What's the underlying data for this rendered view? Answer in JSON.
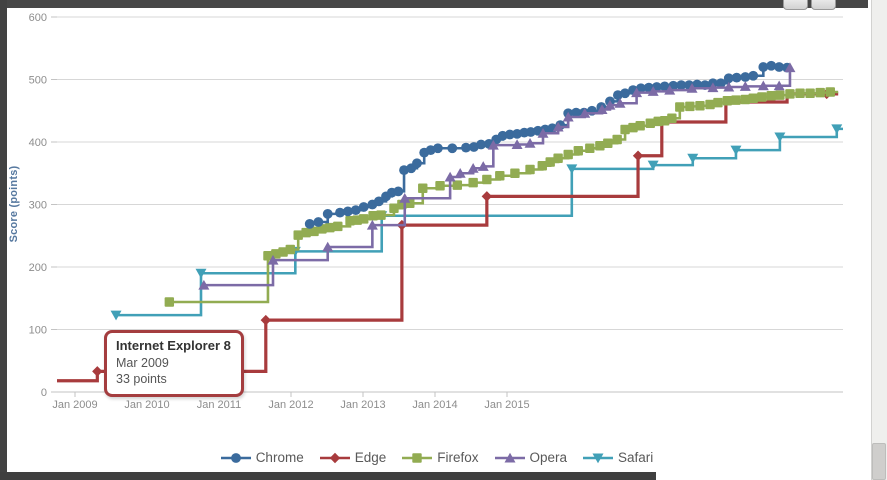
{
  "tooltip": {
    "title": "Internet Explorer 8",
    "date": "Mar 2009",
    "value": "33 points"
  },
  "chart_data": {
    "type": "line",
    "stepped": true,
    "title": "",
    "xlabel": "",
    "ylabel": "Score (points)",
    "ylim": [
      0,
      600
    ],
    "y_ticks": [
      0,
      100,
      200,
      300,
      400,
      500,
      600
    ],
    "x_tick_labels": [
      "Jan 2009",
      "Jan 2010",
      "Jan 2011",
      "Jan 2012",
      "Jan 2013",
      "Jan 2014",
      "Jan 2015"
    ],
    "x_tick_years": [
      2009,
      2010,
      2011,
      2012,
      2013,
      2014,
      2015
    ],
    "grid": "horizontal",
    "legend_position": "bottom",
    "series": [
      {
        "name": "Chrome",
        "color": "#3b6b9d",
        "marker": "circle",
        "end": 2018.93,
        "points": [
          [
            2012.26,
            269
          ],
          [
            2012.38,
            272
          ],
          [
            2012.51,
            285
          ],
          [
            2012.68,
            287
          ],
          [
            2012.79,
            289
          ],
          [
            2012.9,
            291
          ],
          [
            2013.01,
            296
          ],
          [
            2013.13,
            300
          ],
          [
            2013.22,
            305
          ],
          [
            2013.32,
            313
          ],
          [
            2013.4,
            319
          ],
          [
            2013.49,
            321
          ],
          [
            2013.57,
            355
          ],
          [
            2013.67,
            358
          ],
          [
            2013.75,
            366
          ],
          [
            2013.85,
            383
          ],
          [
            2013.94,
            387
          ],
          [
            2014.04,
            390
          ],
          [
            2014.24,
            390
          ],
          [
            2014.43,
            391
          ],
          [
            2014.54,
            392
          ],
          [
            2014.64,
            396
          ],
          [
            2014.75,
            397
          ],
          [
            2014.85,
            404
          ],
          [
            2014.94,
            410
          ],
          [
            2015.04,
            412
          ],
          [
            2015.14,
            413
          ],
          [
            2015.24,
            415
          ],
          [
            2015.33,
            416
          ],
          [
            2015.43,
            418
          ],
          [
            2015.53,
            420
          ],
          [
            2015.63,
            422
          ],
          [
            2015.74,
            427
          ],
          [
            2015.85,
            446
          ],
          [
            2015.96,
            447
          ],
          [
            2016.07,
            447
          ],
          [
            2016.18,
            450
          ],
          [
            2016.31,
            456
          ],
          [
            2016.43,
            465
          ],
          [
            2016.54,
            475
          ],
          [
            2016.64,
            478
          ],
          [
            2016.75,
            483
          ],
          [
            2016.86,
            486
          ],
          [
            2016.97,
            487
          ],
          [
            2017.08,
            488
          ],
          [
            2017.19,
            489
          ],
          [
            2017.31,
            490
          ],
          [
            2017.42,
            491
          ],
          [
            2017.53,
            491
          ],
          [
            2017.64,
            492
          ],
          [
            2017.75,
            491
          ],
          [
            2017.86,
            494
          ],
          [
            2017.97,
            494
          ],
          [
            2018.08,
            502
          ],
          [
            2018.19,
            503
          ],
          [
            2018.31,
            504
          ],
          [
            2018.42,
            506
          ],
          [
            2018.56,
            520
          ],
          [
            2018.67,
            522
          ],
          [
            2018.78,
            520
          ],
          [
            2018.89,
            519
          ]
        ]
      },
      {
        "name": "Edge",
        "color": "#a83b3d",
        "marker": "diamond",
        "end": 2019.6,
        "points": [
          [
            2008.75,
            18,
            0
          ],
          [
            2009.31,
            33,
            1
          ],
          [
            2011.65,
            115,
            1
          ],
          [
            2013.54,
            267,
            1
          ],
          [
            2014.72,
            313,
            1
          ],
          [
            2016.82,
            378,
            1
          ],
          [
            2017.15,
            432,
            0
          ],
          [
            2018.04,
            464,
            0
          ],
          [
            2018.89,
            477,
            0
          ],
          [
            2019.44,
            477,
            1
          ]
        ]
      },
      {
        "name": "Firefox",
        "color": "#92ac52",
        "marker": "square",
        "end": 2019.6,
        "points": [
          [
            2010.31,
            144
          ],
          [
            2011.68,
            218
          ],
          [
            2011.79,
            221
          ],
          [
            2011.89,
            224
          ],
          [
            2011.99,
            228
          ],
          [
            2012.1,
            251
          ],
          [
            2012.21,
            255
          ],
          [
            2012.32,
            257
          ],
          [
            2012.43,
            261
          ],
          [
            2012.54,
            263
          ],
          [
            2012.65,
            265
          ],
          [
            2012.82,
            274
          ],
          [
            2012.92,
            275
          ],
          [
            2013.01,
            277
          ],
          [
            2013.14,
            282
          ],
          [
            2013.25,
            283
          ],
          [
            2013.43,
            294
          ],
          [
            2013.54,
            300
          ],
          [
            2013.65,
            302
          ],
          [
            2013.83,
            326
          ],
          [
            2014.07,
            330
          ],
          [
            2014.31,
            331
          ],
          [
            2014.53,
            335
          ],
          [
            2014.72,
            340
          ],
          [
            2014.9,
            346
          ],
          [
            2015.11,
            350
          ],
          [
            2015.32,
            356
          ],
          [
            2015.49,
            362
          ],
          [
            2015.6,
            368
          ],
          [
            2015.71,
            374
          ],
          [
            2015.85,
            380
          ],
          [
            2015.99,
            386
          ],
          [
            2016.15,
            390
          ],
          [
            2016.29,
            394
          ],
          [
            2016.4,
            398
          ],
          [
            2016.53,
            404
          ],
          [
            2016.64,
            420
          ],
          [
            2016.75,
            423
          ],
          [
            2016.85,
            426
          ],
          [
            2016.99,
            430
          ],
          [
            2017.1,
            433
          ],
          [
            2017.19,
            434
          ],
          [
            2017.29,
            438
          ],
          [
            2017.4,
            456
          ],
          [
            2017.54,
            457
          ],
          [
            2017.68,
            458
          ],
          [
            2017.82,
            460
          ],
          [
            2017.93,
            463
          ],
          [
            2018.06,
            466
          ],
          [
            2018.18,
            467
          ],
          [
            2018.31,
            468
          ],
          [
            2018.42,
            470
          ],
          [
            2018.54,
            472
          ],
          [
            2018.67,
            474
          ],
          [
            2018.79,
            475
          ],
          [
            2018.93,
            477
          ],
          [
            2019.07,
            478
          ],
          [
            2019.21,
            478
          ],
          [
            2019.35,
            479
          ],
          [
            2019.49,
            480
          ]
        ]
      },
      {
        "name": "Opera",
        "color": "#7c6ba6",
        "marker": "triangle-up",
        "end": 2018.96,
        "points": [
          [
            2010.79,
            171
          ],
          [
            2011.75,
            211
          ],
          [
            2012.51,
            232
          ],
          [
            2013.13,
            267
          ],
          [
            2013.58,
            310
          ],
          [
            2014.21,
            344
          ],
          [
            2014.35,
            350
          ],
          [
            2014.53,
            358
          ],
          [
            2014.67,
            361
          ],
          [
            2014.81,
            395
          ],
          [
            2015.14,
            396
          ],
          [
            2015.32,
            398
          ],
          [
            2015.5,
            414
          ],
          [
            2015.71,
            424
          ],
          [
            2015.85,
            440
          ],
          [
            2016.08,
            446
          ],
          [
            2016.32,
            452
          ],
          [
            2016.43,
            459
          ],
          [
            2016.57,
            462
          ],
          [
            2016.8,
            479
          ],
          [
            2017.03,
            481
          ],
          [
            2017.26,
            483
          ],
          [
            2017.57,
            486
          ],
          [
            2017.86,
            487
          ],
          [
            2018.08,
            488
          ],
          [
            2018.31,
            489
          ],
          [
            2018.56,
            490
          ],
          [
            2018.78,
            490
          ],
          [
            2018.93,
            519
          ]
        ]
      },
      {
        "name": "Safari",
        "color": "#41a0b7",
        "marker": "triangle-down",
        "end": 2019.69,
        "points": [
          [
            2009.57,
            123
          ],
          [
            2010.75,
            190
          ],
          [
            2012.06,
            225
          ],
          [
            2013.26,
            282
          ],
          [
            2015.9,
            357
          ],
          [
            2017.03,
            363
          ],
          [
            2017.58,
            374
          ],
          [
            2018.18,
            387
          ],
          [
            2018.79,
            408
          ],
          [
            2019.58,
            421
          ]
        ]
      }
    ],
    "tooltip": {
      "title": "Internet Explorer 8",
      "date": "Mar 2009",
      "value": "33 points"
    }
  }
}
